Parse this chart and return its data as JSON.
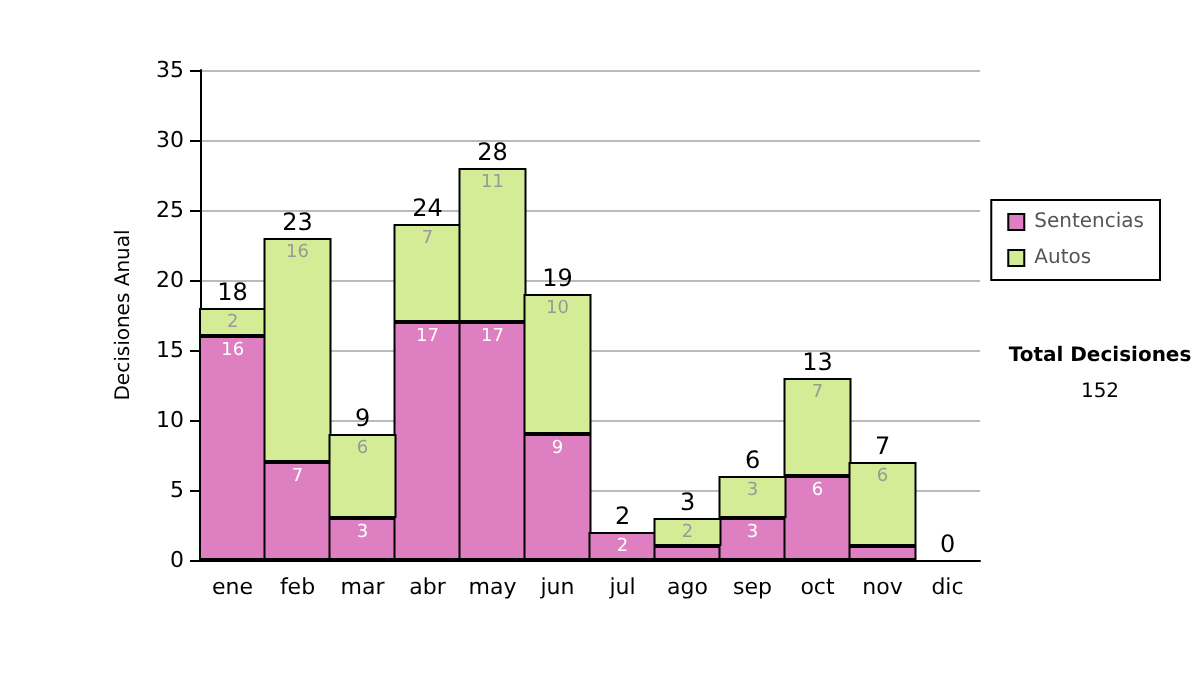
{
  "chart_data": {
    "type": "bar",
    "ylabel": "Decisiones Anual",
    "categories": [
      "ene",
      "feb",
      "mar",
      "abr",
      "may",
      "jun",
      "jul",
      "ago",
      "sep",
      "oct",
      "nov",
      "dic"
    ],
    "stacked": true,
    "series": [
      {
        "name": "Sentencias",
        "color": "#dd7fc0",
        "values": [
          16,
          7,
          3,
          17,
          17,
          9,
          2,
          1,
          3,
          6,
          1,
          0
        ],
        "value_labels": [
          "16",
          "7",
          "3",
          "17",
          "17",
          "9",
          "2",
          null,
          "3",
          "6",
          null,
          null
        ]
      },
      {
        "name": "Autos",
        "color": "#d4ec96",
        "values": [
          2,
          16,
          6,
          7,
          11,
          10,
          0,
          2,
          3,
          7,
          6,
          0
        ],
        "value_labels": [
          "2",
          "16",
          "6",
          "7",
          "11",
          "10",
          null,
          "2",
          "3",
          "7",
          "6",
          null
        ]
      }
    ],
    "totals": [
      "18",
      "23",
      "9",
      "24",
      "28",
      "19",
      "2",
      "3",
      "6",
      "13",
      "7",
      "0"
    ],
    "ylim": [
      0,
      35
    ],
    "yticks": [
      0,
      5,
      10,
      15,
      20,
      25,
      30,
      35
    ],
    "grid": "y",
    "legend": "right",
    "annotations": [
      "Total Decisiones",
      "152"
    ]
  }
}
